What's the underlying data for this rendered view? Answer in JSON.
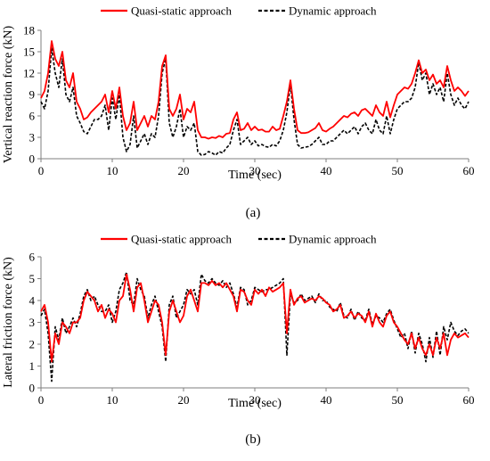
{
  "colors": {
    "quasi": "#ff0000",
    "dynamic": "#000000",
    "axis": "#7f7f7f"
  },
  "chart_data": [
    {
      "type": "line",
      "panel_label": "(a)",
      "xlabel": "Time (sec)",
      "ylabel": "Vertical reaction force (kN)",
      "xlim": [
        0,
        60
      ],
      "ylim": [
        0,
        18
      ],
      "xticks": [
        0,
        10,
        20,
        30,
        40,
        50,
        60
      ],
      "yticks": [
        0,
        3,
        6,
        9,
        12,
        15,
        18
      ],
      "grid": false,
      "legend_position": "top",
      "series": [
        {
          "name": "Quasi-static approach",
          "style": "solid",
          "color": "#ff0000",
          "x": [
            0,
            0.5,
            1,
            1.5,
            2,
            2.5,
            3,
            3.5,
            4,
            4.5,
            5,
            5.5,
            6,
            6.5,
            7,
            7.5,
            8,
            8.5,
            9,
            9.5,
            10,
            10.5,
            11,
            11.5,
            12,
            12.5,
            13,
            13.5,
            14,
            14.5,
            15,
            15.5,
            16,
            16.5,
            17,
            17.5,
            18,
            18.5,
            19,
            19.5,
            20,
            20.5,
            21,
            21.5,
            22,
            22.5,
            23,
            23.5,
            24,
            24.5,
            25,
            25.5,
            26,
            26.5,
            27,
            27.5,
            28,
            28.5,
            29,
            29.5,
            30,
            30.5,
            31,
            31.5,
            32,
            32.5,
            33,
            33.5,
            34,
            34.5,
            35,
            35.5,
            36,
            36.5,
            37,
            37.5,
            38,
            38.5,
            39,
            39.5,
            40,
            40.5,
            41,
            41.5,
            42,
            42.5,
            43,
            43.5,
            44,
            44.5,
            45,
            45.5,
            46,
            46.5,
            47,
            47.5,
            48,
            48.5,
            49,
            49.5,
            50,
            50.5,
            51,
            51.5,
            52,
            52.5,
            53,
            53.5,
            54,
            54.5,
            55,
            55.5,
            56,
            56.5,
            57,
            57.5,
            58,
            58.5,
            59,
            59.5,
            60
          ],
          "y": [
            8.5,
            9.5,
            12,
            16.5,
            14,
            13,
            15,
            11,
            10,
            12,
            8,
            7,
            5.5,
            5.8,
            6.5,
            7,
            7.5,
            8,
            9,
            6.5,
            9.5,
            7,
            10,
            6,
            4,
            5,
            8,
            4,
            5,
            6,
            4.5,
            6,
            5.5,
            8,
            13,
            14.5,
            7,
            6,
            7,
            9,
            5.5,
            7,
            6.5,
            8,
            4,
            3,
            3,
            2.8,
            3,
            2.9,
            3.2,
            3,
            3.5,
            3.6,
            5.5,
            6.5,
            4,
            4.2,
            5,
            4,
            4.5,
            4,
            4.1,
            3.8,
            3.8,
            4.5,
            4,
            4.2,
            6,
            8,
            11,
            7,
            4,
            3.6,
            3.6,
            3.7,
            4,
            4.3,
            5,
            4,
            3.8,
            4.2,
            4.5,
            5,
            5.5,
            6,
            5.8,
            6.3,
            6.5,
            6,
            6.8,
            7,
            6.5,
            6,
            7.5,
            6.5,
            6,
            8,
            5.8,
            7.5,
            9,
            9.5,
            10,
            9.8,
            10.5,
            12,
            13.8,
            12,
            12.5,
            11,
            11.8,
            10.5,
            11,
            10,
            13,
            11,
            9.5,
            10,
            9.5,
            8.8,
            9.5
          ]
        },
        {
          "name": "Dynamic approach",
          "style": "dashed",
          "color": "#000000",
          "x": [
            0,
            0.5,
            1,
            1.5,
            2,
            2.5,
            3,
            3.5,
            4,
            4.5,
            5,
            5.5,
            6,
            6.5,
            7,
            7.5,
            8,
            8.5,
            9,
            9.5,
            10,
            10.5,
            11,
            11.5,
            12,
            12.5,
            13,
            13.5,
            14,
            14.5,
            15,
            15.5,
            16,
            16.5,
            17,
            17.5,
            18,
            18.5,
            19,
            19.5,
            20,
            20.5,
            21,
            21.5,
            22,
            22.5,
            23,
            23.5,
            24,
            24.5,
            25,
            25.5,
            26,
            26.5,
            27,
            27.5,
            28,
            28.5,
            29,
            29.5,
            30,
            30.5,
            31,
            31.5,
            32,
            32.5,
            33,
            33.5,
            34,
            34.5,
            35,
            35.5,
            36,
            36.5,
            37,
            37.5,
            38,
            38.5,
            39,
            39.5,
            40,
            40.5,
            41,
            41.5,
            42,
            42.5,
            43,
            43.5,
            44,
            44.5,
            45,
            45.5,
            46,
            46.5,
            47,
            47.5,
            48,
            48.5,
            49,
            49.5,
            50,
            50.5,
            51,
            51.5,
            52,
            52.5,
            53,
            53.5,
            54,
            54.5,
            55,
            55.5,
            56,
            56.5,
            57,
            57.5,
            58,
            58.5,
            59,
            59.5,
            60
          ],
          "y": [
            8,
            7,
            9.5,
            15.5,
            12,
            10,
            14,
            9,
            8,
            10,
            6,
            5,
            3.8,
            3.5,
            4.5,
            5.5,
            5.5,
            6,
            7.5,
            4,
            8.5,
            5.5,
            9,
            3,
            1,
            2,
            6,
            1.5,
            2.5,
            3.5,
            2,
            3.5,
            3,
            6,
            12,
            14,
            5,
            3,
            4.5,
            7,
            3,
            4.5,
            4,
            5,
            1,
            0.5,
            0.6,
            1,
            0.8,
            0.5,
            1,
            0.8,
            1.5,
            2,
            4,
            5.5,
            2,
            2.5,
            3,
            2,
            2.5,
            1.8,
            2,
            1.7,
            1.6,
            2,
            1.8,
            2.5,
            4,
            6.5,
            10.5,
            5.5,
            2,
            1.5,
            1.6,
            1.7,
            2,
            2.5,
            3,
            2,
            2,
            2.5,
            2.5,
            3,
            3.5,
            4,
            3.5,
            4,
            4.5,
            3.5,
            4.5,
            5,
            4,
            3.5,
            5.5,
            4,
            3.5,
            6,
            3.5,
            5.5,
            7,
            7.5,
            8,
            8,
            8.5,
            10,
            13.5,
            11,
            12,
            9,
            10.5,
            9,
            10,
            8,
            12,
            9,
            7.5,
            8.5,
            7.5,
            7,
            8
          ]
        }
      ]
    },
    {
      "type": "line",
      "panel_label": "(b)",
      "xlabel": "Time (sec)",
      "ylabel": "Lateral friction force (kN)",
      "xlim": [
        0,
        60
      ],
      "ylim": [
        0,
        6
      ],
      "xticks": [
        0,
        10,
        20,
        30,
        40,
        50,
        60
      ],
      "yticks": [
        0,
        1,
        2,
        3,
        4,
        5,
        6
      ],
      "grid": false,
      "legend_position": "top",
      "series": [
        {
          "name": "Quasi-static approach",
          "style": "solid",
          "color": "#ff0000",
          "x": [
            0,
            0.5,
            1,
            1.5,
            2,
            2.5,
            3,
            3.5,
            4,
            4.5,
            5,
            5.5,
            6,
            6.5,
            7,
            7.5,
            8,
            8.5,
            9,
            9.5,
            10,
            10.5,
            11,
            11.5,
            12,
            12.5,
            13,
            13.5,
            14,
            14.5,
            15,
            15.5,
            16,
            16.5,
            17,
            17.5,
            18,
            18.5,
            19,
            19.5,
            20,
            20.5,
            21,
            21.5,
            22,
            22.5,
            23,
            23.5,
            24,
            24.5,
            25,
            25.5,
            26,
            26.5,
            27,
            27.5,
            28,
            28.5,
            29,
            29.5,
            30,
            30.5,
            31,
            31.5,
            32,
            32.5,
            33,
            33.5,
            34,
            34.5,
            35,
            35.5,
            36,
            36.5,
            37,
            37.5,
            38,
            38.5,
            39,
            39.5,
            40,
            40.5,
            41,
            41.5,
            42,
            42.5,
            43,
            43.5,
            44,
            44.5,
            45,
            45.5,
            46,
            46.5,
            47,
            47.5,
            48,
            48.5,
            49,
            49.5,
            50,
            50.5,
            51,
            51.5,
            52,
            52.5,
            53,
            53.5,
            54,
            54.5,
            55,
            55.5,
            56,
            56.5,
            57,
            57.5,
            58,
            58.5,
            59,
            59.5,
            60
          ],
          "y": [
            3.5,
            3.8,
            3,
            1.2,
            2.5,
            2,
            3,
            2.8,
            2.5,
            3,
            3,
            3.2,
            4,
            4.4,
            4.2,
            4,
            3.5,
            3.8,
            3.2,
            3.6,
            3.4,
            3,
            4,
            4.2,
            5.2,
            4.5,
            3.5,
            4.6,
            4.8,
            4,
            3,
            3.5,
            4,
            3.8,
            3,
            1.5,
            3.5,
            4,
            3.5,
            3,
            3.3,
            4.2,
            4.5,
            4,
            3.5,
            4.8,
            4.8,
            4.7,
            4.9,
            4.7,
            4.8,
            4.6,
            4.8,
            4.5,
            4.2,
            3.5,
            4.5,
            4.4,
            4,
            3.8,
            4.5,
            4.3,
            4.5,
            4.2,
            4.6,
            4.4,
            4.5,
            4.6,
            4.8,
            2.5,
            4.5,
            3.8,
            4.1,
            4.2,
            3.9,
            4,
            4.1,
            4,
            4.2,
            4.1,
            3.9,
            3.8,
            3.5,
            3.6,
            3.8,
            3.2,
            3.3,
            3.5,
            3.2,
            3.4,
            3.3,
            3,
            3.5,
            2.8,
            3.4,
            3,
            2.8,
            3.3,
            3.5,
            3,
            2.8,
            2.5,
            2.2,
            2,
            2.5,
            1.8,
            2.3,
            1.8,
            1.5,
            2,
            1.5,
            2.3,
            1.8,
            2.5,
            1.5,
            2.2,
            2.5,
            2.3,
            2.4,
            2.5,
            2.3
          ]
        },
        {
          "name": "Dynamic approach",
          "style": "dashed",
          "color": "#000000",
          "x": [
            0,
            0.5,
            1,
            1.5,
            2,
            2.5,
            3,
            3.5,
            4,
            4.5,
            5,
            5.5,
            6,
            6.5,
            7,
            7.5,
            8,
            8.5,
            9,
            9.5,
            10,
            10.5,
            11,
            11.5,
            12,
            12.5,
            13,
            13.5,
            14,
            14.5,
            15,
            15.5,
            16,
            16.5,
            17,
            17.5,
            18,
            18.5,
            19,
            19.5,
            20,
            20.5,
            21,
            21.5,
            22,
            22.5,
            23,
            23.5,
            24,
            24.5,
            25,
            25.5,
            26,
            26.5,
            27,
            27.5,
            28,
            28.5,
            29,
            29.5,
            30,
            30.5,
            31,
            31.5,
            32,
            32.5,
            33,
            33.5,
            34,
            34.5,
            35,
            35.5,
            36,
            36.5,
            37,
            37.5,
            38,
            38.5,
            39,
            39.5,
            40,
            40.5,
            41,
            41.5,
            42,
            42.5,
            43,
            43.5,
            44,
            44.5,
            45,
            45.5,
            46,
            46.5,
            47,
            47.5,
            48,
            48.5,
            49,
            49.5,
            50,
            50.5,
            51,
            51.5,
            52,
            52.5,
            53,
            53.5,
            54,
            54.5,
            55,
            55.5,
            56,
            56.5,
            57,
            57.5,
            58,
            58.5,
            59,
            59.5,
            60
          ],
          "y": [
            3.3,
            3.6,
            2.5,
            0.3,
            2.8,
            2.2,
            3.2,
            2.5,
            2.8,
            3.2,
            2.8,
            3.4,
            4.2,
            4.5,
            4,
            4.2,
            3.8,
            3.5,
            3.5,
            3.8,
            3,
            3.5,
            4.5,
            4.8,
            5.3,
            4,
            3.8,
            5,
            4.5,
            4.2,
            3.2,
            3.8,
            4.2,
            3.5,
            2.8,
            1.2,
            3.8,
            4.2,
            3.2,
            3.5,
            3.8,
            4.5,
            4.3,
            4.5,
            3.8,
            5.2,
            4.9,
            4.8,
            5,
            4.8,
            4.7,
            4.9,
            4.6,
            4.8,
            4.3,
            3.7,
            4.6,
            4.5,
            3.8,
            4,
            4.6,
            4.5,
            4.4,
            4.5,
            4.5,
            4.6,
            4.7,
            4.8,
            5,
            1.5,
            4.3,
            3.9,
            4,
            4.3,
            4,
            4.1,
            4.2,
            3.9,
            4.3,
            4,
            4,
            3.7,
            3.6,
            3.5,
            3.9,
            3.3,
            3.2,
            3.6,
            3.1,
            3.5,
            3.2,
            3.1,
            3.6,
            2.9,
            3.3,
            3.2,
            3,
            3.4,
            3.6,
            3.1,
            2.7,
            2.3,
            2.5,
            1.8,
            2.6,
            1.6,
            2.5,
            2,
            1.2,
            2.3,
            1.4,
            2.6,
            1.5,
            2.8,
            2.2,
            3,
            2.6,
            2.4,
            2.6,
            2.7,
            2.5
          ]
        }
      ]
    }
  ]
}
